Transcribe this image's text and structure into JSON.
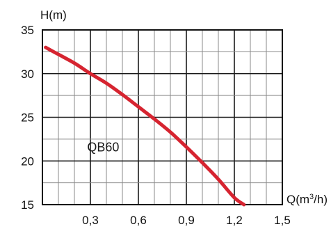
{
  "chart_data": {
    "type": "line",
    "title": "",
    "ylabel": "H(m)",
    "xlabel_parts": {
      "main": "Q(m",
      "sup": "3",
      "end": "/h)"
    },
    "xlim": [
      0,
      1.5
    ],
    "ylim": [
      15,
      35
    ],
    "x_ticks": [
      {
        "value": 0.3,
        "label": "0,3"
      },
      {
        "value": 0.6,
        "label": "0,6"
      },
      {
        "value": 0.9,
        "label": "0,9"
      },
      {
        "value": 1.2,
        "label": "1,2"
      },
      {
        "value": 1.5,
        "label": "1,5"
      }
    ],
    "y_ticks": [
      {
        "value": 15,
        "label": "15"
      },
      {
        "value": 20,
        "label": "20"
      },
      {
        "value": 25,
        "label": "25"
      },
      {
        "value": 30,
        "label": "30"
      },
      {
        "value": 35,
        "label": "35"
      }
    ],
    "grid": true,
    "x_minor_step": 0.1,
    "y_minor_step": 2.5,
    "series": [
      {
        "name": "QB60",
        "color": "#d62430",
        "x": [
          0.02,
          0.1,
          0.2,
          0.3,
          0.4,
          0.5,
          0.6,
          0.7,
          0.8,
          0.9,
          1.0,
          1.1,
          1.2,
          1.26
        ],
        "y": [
          33.0,
          32.2,
          31.2,
          30.0,
          28.9,
          27.6,
          26.2,
          24.8,
          23.3,
          21.6,
          19.8,
          17.9,
          15.8,
          15.0
        ]
      }
    ]
  }
}
